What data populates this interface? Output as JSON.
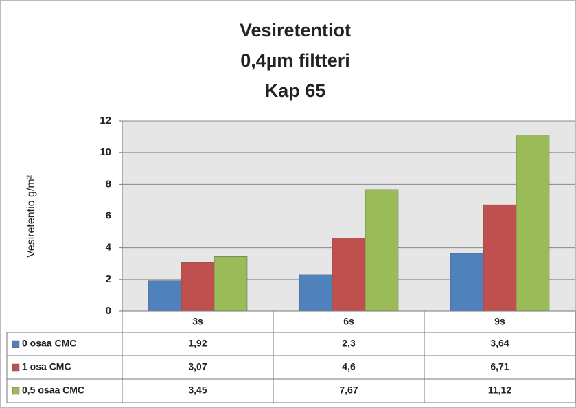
{
  "chart_data": {
    "type": "bar",
    "title": [
      "Vesiretentiot",
      "0,4µm filtteri",
      "Kap 65"
    ],
    "y_label": "Vesiretentio g/m²",
    "categories": [
      "3s",
      "6s",
      "9s"
    ],
    "series": [
      {
        "name": "0 osaa CMC",
        "color": "#4f81bd",
        "values": [
          1.92,
          2.3,
          3.64
        ],
        "value_labels": [
          "1,92",
          "2,3",
          "3,64"
        ]
      },
      {
        "name": "1 osa CMC",
        "color": "#c0504d",
        "values": [
          3.07,
          4.6,
          6.71
        ],
        "value_labels": [
          "3,07",
          "4,6",
          "6,71"
        ]
      },
      {
        "name": "0,5 osaa CMC",
        "color": "#9bbb59",
        "values": [
          3.45,
          7.67,
          11.12
        ],
        "value_labels": [
          "3,45",
          "7,67",
          "11,12"
        ]
      }
    ],
    "ylim": [
      0,
      12
    ],
    "yticks": [
      0,
      2,
      4,
      6,
      8,
      10,
      12
    ],
    "grid": true,
    "legend": "table"
  }
}
